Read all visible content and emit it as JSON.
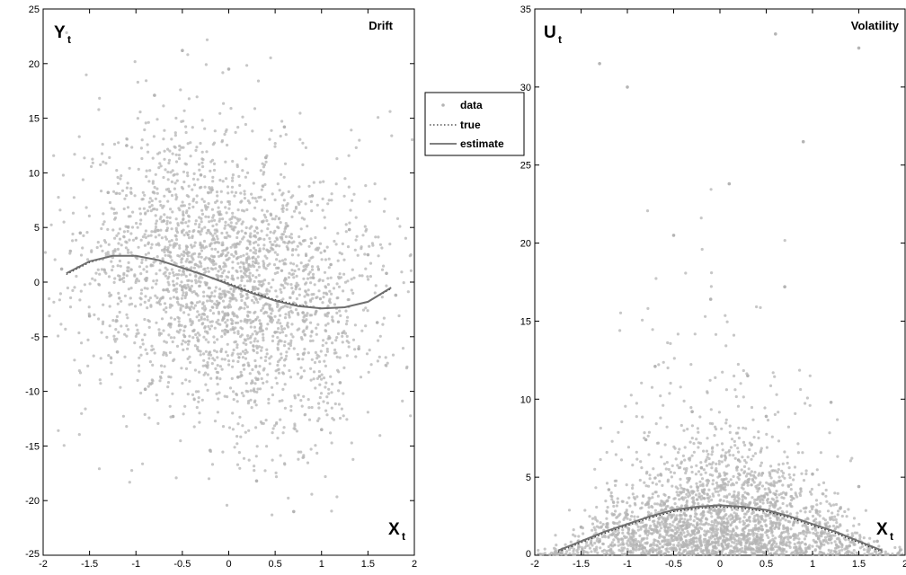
{
  "chart_data": [
    {
      "type": "scatter",
      "title": "Drift",
      "ylabel": "Y",
      "ylabel_sub": "t",
      "xlabel": "X",
      "xlabel_sub": "t",
      "xlim": [
        -2,
        2
      ],
      "ylim": [
        -25,
        25
      ],
      "xticks": [
        -2,
        -1.5,
        -1,
        -0.5,
        0,
        0.5,
        1,
        1.5,
        2
      ],
      "xtick_labels": [
        "-2",
        "-1.5",
        "-1",
        "-0.5",
        "0",
        "0.5",
        "1",
        "1.5",
        "2"
      ],
      "yticks": [
        -25,
        -20,
        -15,
        -10,
        -5,
        0,
        5,
        10,
        15,
        20,
        25
      ],
      "ytick_labels": [
        "-25",
        "-20",
        "-15",
        "-10",
        "-5",
        "0",
        "5",
        "10",
        "15",
        "20",
        "25"
      ],
      "grid": false,
      "series": [
        {
          "name": "data",
          "kind": "scatter",
          "color": "#b4b4b4",
          "sample_points": [
            [
              -1.8,
              1.2
            ],
            [
              -1.6,
              4.5
            ],
            [
              -1.5,
              -3.1
            ],
            [
              -1.3,
              8.2
            ],
            [
              -1.2,
              -6.4
            ],
            [
              -1.1,
              12.5
            ],
            [
              -1.0,
              2.3
            ],
            [
              -0.9,
              -9.8
            ],
            [
              -0.8,
              17.1
            ],
            [
              -0.7,
              5.6
            ],
            [
              -0.6,
              -12.3
            ],
            [
              -0.5,
              21.2
            ],
            [
              -0.4,
              -1.9
            ],
            [
              -0.3,
              9.8
            ],
            [
              -0.2,
              -15.4
            ],
            [
              -0.1,
              6.2
            ],
            [
              0.0,
              19.5
            ],
            [
              0.1,
              -8.7
            ],
            [
              0.2,
              3.1
            ],
            [
              0.3,
              -18.2
            ],
            [
              0.4,
              11.4
            ],
            [
              0.5,
              -4.6
            ],
            [
              0.6,
              14.2
            ],
            [
              0.7,
              -21.0
            ],
            [
              0.8,
              -2.8
            ],
            [
              0.9,
              7.9
            ],
            [
              1.0,
              -13.5
            ],
            [
              1.1,
              1.6
            ],
            [
              1.2,
              -9.2
            ],
            [
              1.3,
              4.8
            ],
            [
              1.4,
              -6.1
            ],
            [
              1.5,
              2.5
            ],
            [
              1.6,
              -3.7
            ],
            [
              1.7,
              0.8
            ],
            [
              1.8,
              -1.2
            ]
          ]
        },
        {
          "name": "true",
          "kind": "line",
          "style": "dotted",
          "color": "#333333",
          "x": [
            -1.75,
            -1.5,
            -1.25,
            -1.0,
            -0.75,
            -0.5,
            -0.25,
            0.0,
            0.25,
            0.5,
            0.75,
            1.0,
            1.25,
            1.5,
            1.75
          ],
          "y": [
            0.7,
            1.8,
            2.4,
            2.4,
            2.0,
            1.3,
            0.6,
            -0.1,
            -0.9,
            -1.6,
            -2.1,
            -2.4,
            -2.3,
            -1.8,
            -0.6
          ]
        },
        {
          "name": "estimate",
          "kind": "line",
          "style": "solid",
          "color": "#6e6e6e",
          "x": [
            -1.75,
            -1.5,
            -1.25,
            -1.0,
            -0.75,
            -0.5,
            -0.25,
            0.0,
            0.25,
            0.5,
            0.75,
            1.0,
            1.25,
            1.5,
            1.75
          ],
          "y": [
            0.8,
            1.9,
            2.4,
            2.4,
            2.0,
            1.3,
            0.6,
            -0.2,
            -1.0,
            -1.7,
            -2.2,
            -2.4,
            -2.3,
            -1.8,
            -0.5
          ]
        }
      ]
    },
    {
      "type": "scatter",
      "title": "Volatility",
      "ylabel": "U",
      "ylabel_sub": "t",
      "xlabel": "X",
      "xlabel_sub": "t",
      "xlim": [
        -2,
        2
      ],
      "ylim": [
        0,
        35
      ],
      "xticks": [
        -2,
        -1.5,
        -1,
        -0.5,
        0,
        0.5,
        1,
        1.5,
        2
      ],
      "xtick_labels": [
        "-2",
        "-1.5",
        "-1",
        "-0.5",
        "0",
        "0.5",
        "1",
        "1.5",
        "2"
      ],
      "yticks": [
        0,
        5,
        10,
        15,
        20,
        25,
        30,
        35
      ],
      "ytick_labels": [
        "0",
        "5",
        "10",
        "15",
        "20",
        "25",
        "30",
        "35"
      ],
      "grid": false,
      "series": [
        {
          "name": "data",
          "kind": "scatter",
          "color": "#b4b4b4",
          "sample_points": [
            [
              -1.7,
              0.4
            ],
            [
              -1.5,
              1.8
            ],
            [
              -1.3,
              0.9
            ],
            [
              -1.2,
              4.2
            ],
            [
              -1.0,
              2.6
            ],
            [
              -0.9,
              0.7
            ],
            [
              -0.8,
              7.4
            ],
            [
              -0.7,
              12.1
            ],
            [
              -0.6,
              3.3
            ],
            [
              -0.5,
              20.5
            ],
            [
              -0.4,
              1.9
            ],
            [
              -0.3,
              9.2
            ],
            [
              -0.2,
              5.6
            ],
            [
              -0.1,
              16.4
            ],
            [
              0.0,
              2.8
            ],
            [
              0.1,
              23.8
            ],
            [
              0.2,
              6.1
            ],
            [
              0.3,
              11.5
            ],
            [
              0.4,
              1.2
            ],
            [
              0.5,
              8.9
            ],
            [
              0.6,
              3.9
            ],
            [
              0.7,
              17.2
            ],
            [
              0.8,
              2.1
            ],
            [
              0.9,
              26.5
            ],
            [
              1.0,
              5.2
            ],
            [
              1.1,
              1.4
            ],
            [
              1.2,
              9.8
            ],
            [
              1.3,
              3.0
            ],
            [
              1.4,
              0.6
            ],
            [
              1.5,
              4.4
            ],
            [
              1.7,
              0.9
            ],
            [
              -1.3,
              31.5
            ],
            [
              -1.0,
              30.0
            ],
            [
              1.5,
              32.5
            ],
            [
              0.6,
              33.4
            ]
          ]
        },
        {
          "name": "true",
          "kind": "line",
          "style": "dotted",
          "color": "#333333",
          "x": [
            -1.75,
            -1.5,
            -1.25,
            -1.0,
            -0.75,
            -0.5,
            -0.25,
            0.0,
            0.25,
            0.5,
            0.75,
            1.0,
            1.25,
            1.5,
            1.75
          ],
          "y": [
            0.2,
            0.8,
            1.4,
            1.9,
            2.4,
            2.8,
            3.0,
            3.1,
            3.0,
            2.8,
            2.4,
            1.9,
            1.4,
            0.8,
            0.2
          ]
        },
        {
          "name": "estimate",
          "kind": "line",
          "style": "solid",
          "color": "#6e6e6e",
          "x": [
            -1.75,
            -1.5,
            -1.25,
            -1.0,
            -0.75,
            -0.5,
            -0.25,
            0.0,
            0.25,
            0.5,
            0.75,
            1.0,
            1.25,
            1.5,
            1.75
          ],
          "y": [
            0.3,
            0.9,
            1.5,
            2.0,
            2.5,
            2.9,
            3.1,
            3.2,
            3.1,
            2.9,
            2.5,
            2.0,
            1.5,
            0.9,
            0.3
          ]
        }
      ]
    }
  ],
  "legend": {
    "placement": "between panels, upper",
    "items": [
      {
        "label": "data",
        "marker": "point"
      },
      {
        "label": "true",
        "marker": "dotted-line"
      },
      {
        "label": "estimate",
        "marker": "solid-line"
      }
    ]
  }
}
